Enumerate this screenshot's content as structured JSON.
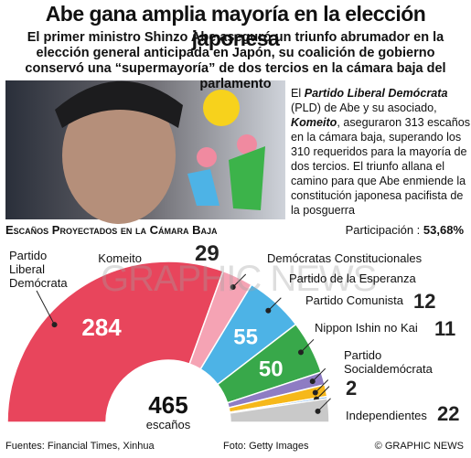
{
  "header": {
    "title": "Abe gana amplia mayoría en la elección japonesa",
    "subtitle": "El primer ministro Shinzo Abe aseguró un triunfo abrumador en la elección general anticipada en Japón, su coalición de gobierno conservó una “supermayoría” de dos tercios en la cámara baja del parlamento"
  },
  "body": [
    "El ",
    "Partido Liberal Demócrata",
    " (PLD) de Abe y su asociado, ",
    "Komeito",
    ", aseguraron 313 escaños en la cámara baja, superando los 310 requeridos para la mayoría de dos tercios. El triunfo allana el camino para que Abe enmiende la constitución japonesa pacifista de la posguerra"
  ],
  "chart_data": {
    "type": "semicircle",
    "title": "Escaños Proyectados en la Cámara Baja",
    "turnout_label": "Participación :",
    "turnout": "53,68%",
    "categories": [
      "Partido Liberal Demócrata",
      "Komeito",
      "Demócratas Constitucionales",
      "Partido de la Esperanza",
      "Partido Comunista",
      "Nippon Ishin no Kai",
      "Partido Socialdemócrata",
      "Independientes"
    ],
    "values": [
      284,
      29,
      55,
      50,
      12,
      11,
      2,
      22
    ],
    "colors": [
      "#e8455c",
      "#f5a3b4",
      "#4db3e6",
      "#38a84a",
      "#8e7cc3",
      "#f6b81a",
      "#6fa8dc",
      "#c9c9c9"
    ],
    "total": 465,
    "total_label": "escaños"
  },
  "footer": {
    "sources": "Fuentes: Financial Times, Xinhua",
    "photo": "Foto: Getty Images",
    "credit": "© GRAPHIC NEWS",
    "watermark": "GRAPHIC NEWS"
  }
}
